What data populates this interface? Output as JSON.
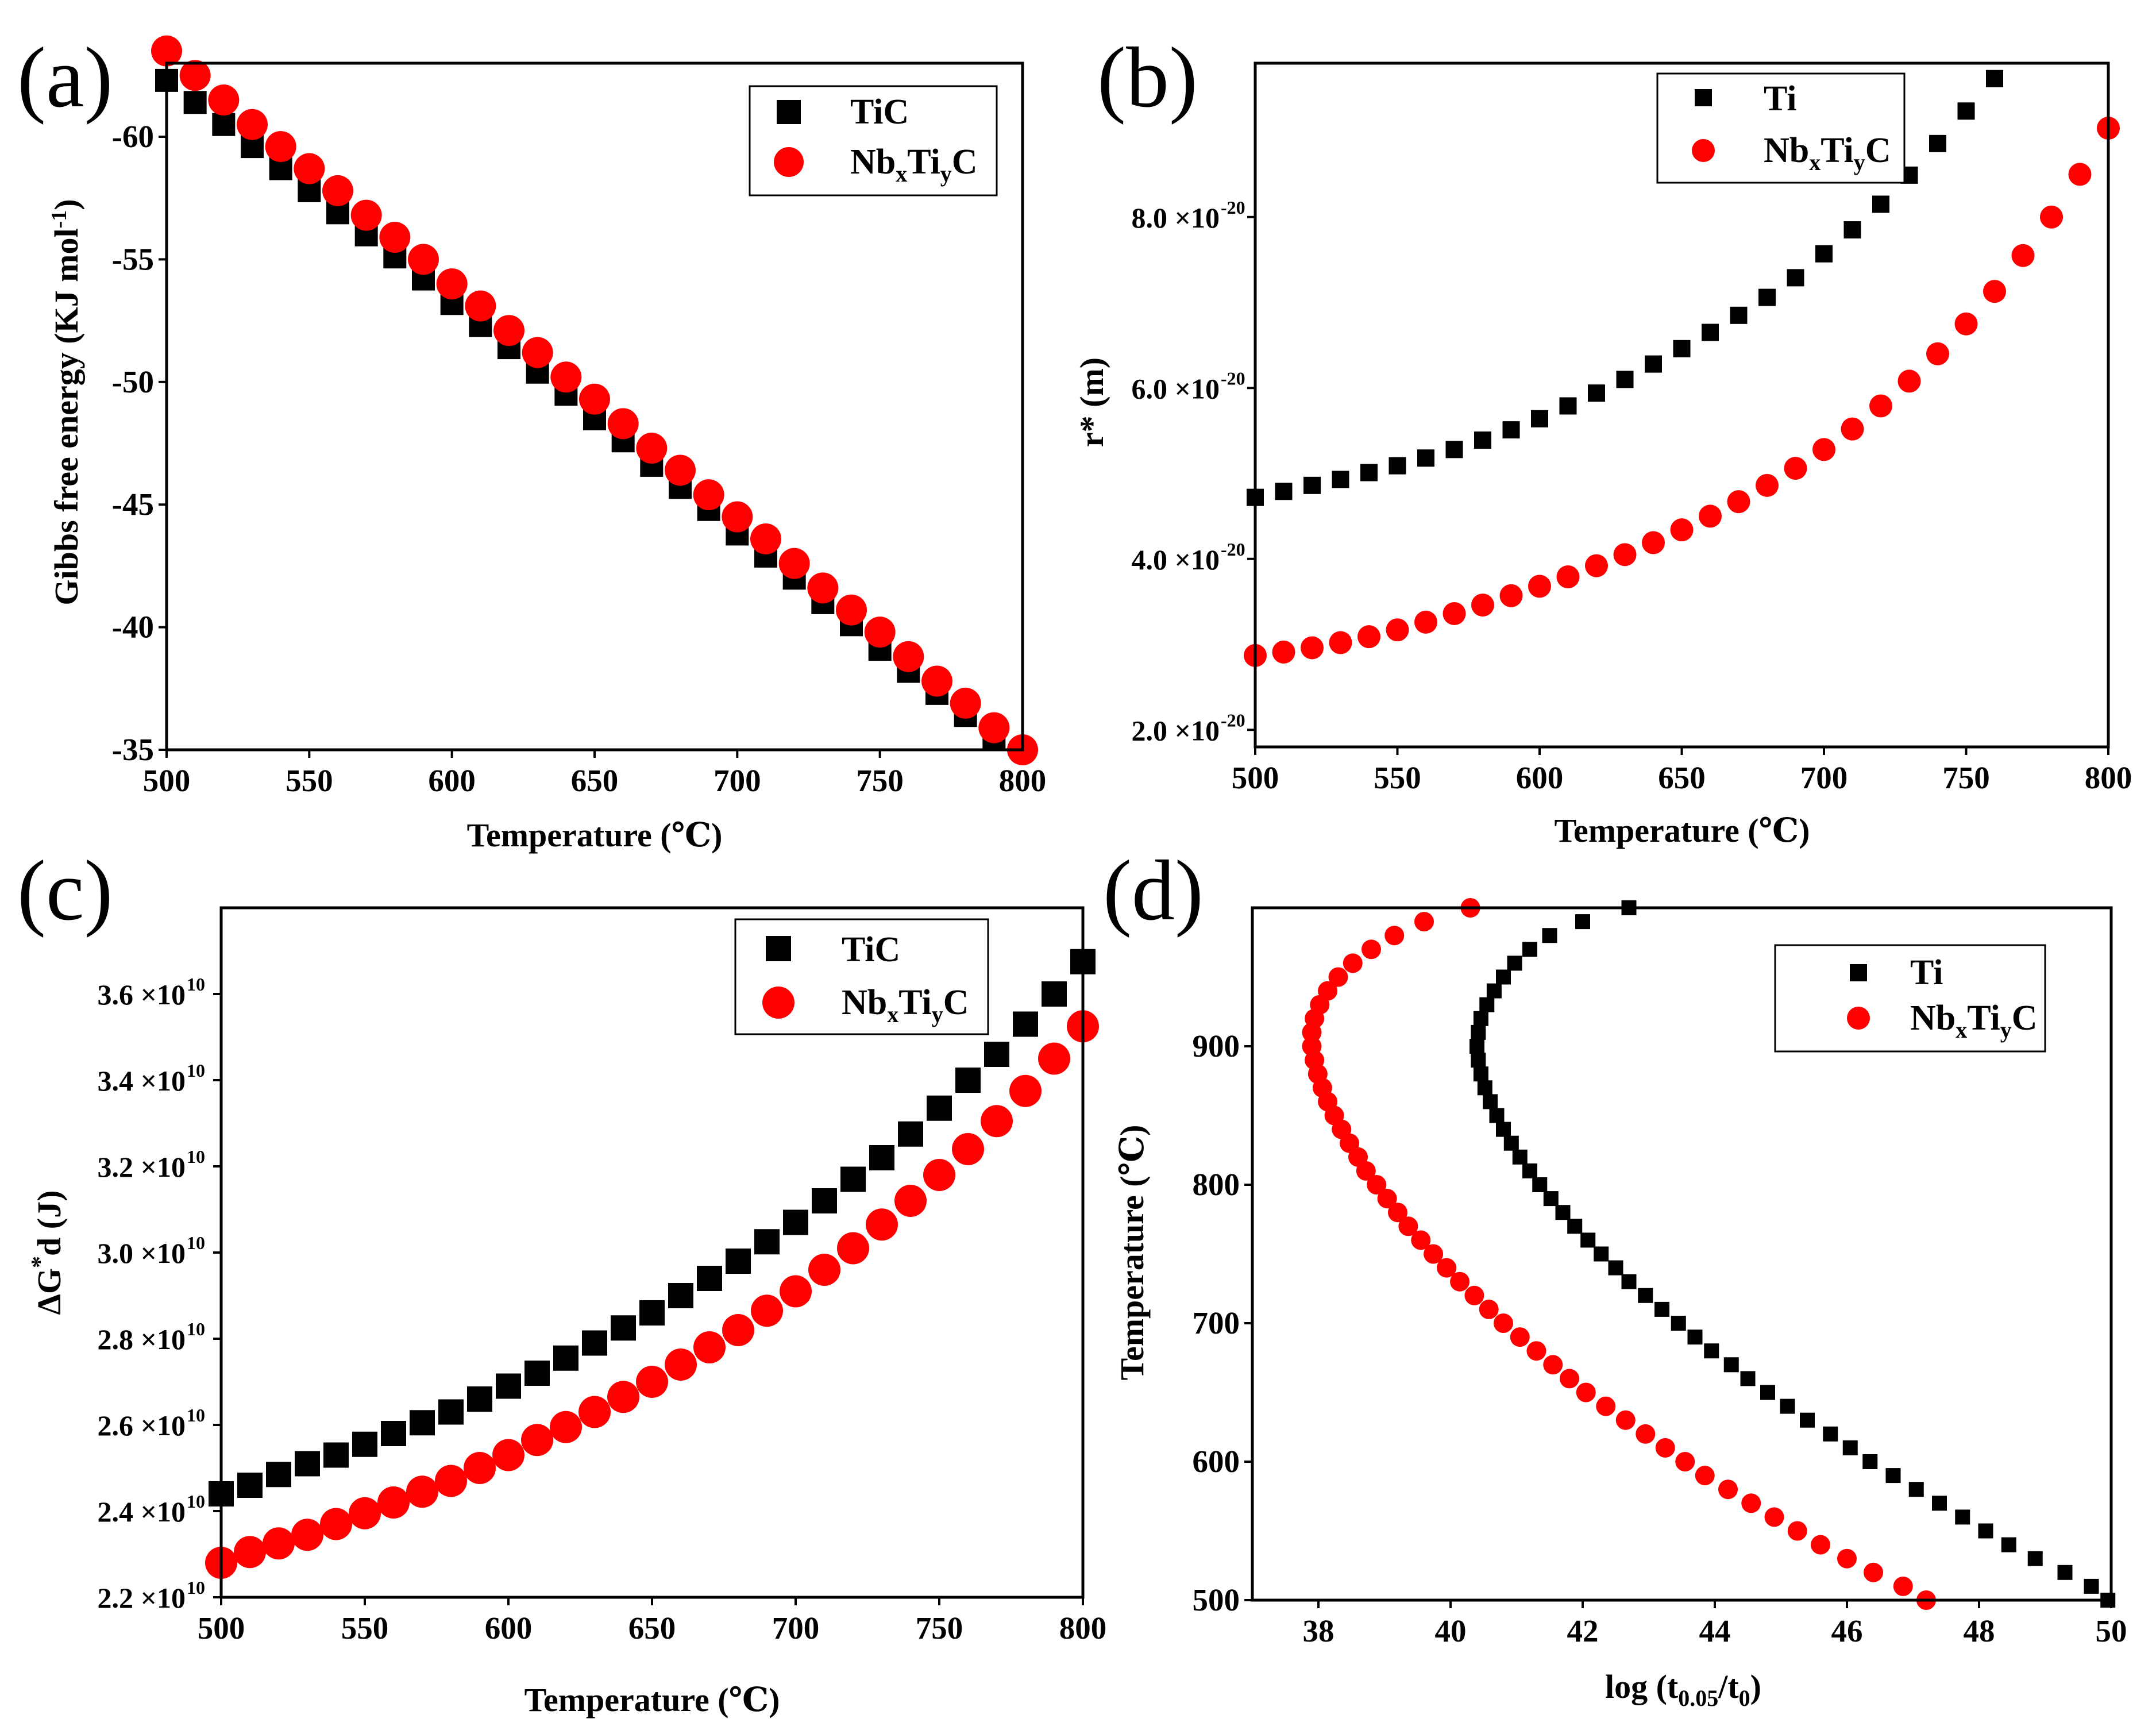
{
  "chart_data": [
    {
      "panel": "(a)",
      "type": "scatter",
      "xlabel": "Temperature (℃)",
      "ylabel": "Gibbs free energy (KJ mol⁻¹)",
      "xlim": [
        500,
        800
      ],
      "ylim": [
        -35,
        -63
      ],
      "xticks": [
        500,
        550,
        600,
        650,
        700,
        750,
        800
      ],
      "yticks": [
        -35,
        -40,
        -45,
        -50,
        -55,
        -60
      ],
      "legend_position": "top-right",
      "x": [
        500,
        510,
        520,
        530,
        540,
        550,
        560,
        570,
        580,
        590,
        600,
        610,
        620,
        630,
        640,
        650,
        660,
        670,
        680,
        690,
        700,
        710,
        720,
        730,
        740,
        750,
        760,
        770,
        780,
        790,
        800
      ],
      "series": [
        {
          "name": "TiC",
          "marker": "square",
          "color": "#000000",
          "values": [
            -62.3,
            -61.4,
            -60.5,
            -59.6,
            -58.7,
            -57.8,
            -56.9,
            -56.0,
            -55.1,
            -54.2,
            -53.2,
            -52.3,
            -51.4,
            -50.4,
            -49.5,
            -48.5,
            -47.6,
            -46.6,
            -45.7,
            -44.8,
            -43.8,
            -42.9,
            -42.0,
            -41.0,
            -40.1,
            -39.1,
            -38.2,
            -37.3,
            -36.4,
            -35.5
          ]
        },
        {
          "name": "NbxTiyC",
          "marker": "circle",
          "color": "#ff0000",
          "values": [
            -63.5,
            -62.5,
            -61.5,
            -60.5,
            -59.6,
            -58.7,
            -57.8,
            -56.8,
            -55.9,
            -55.0,
            -54.0,
            -53.1,
            -52.1,
            -51.2,
            -50.2,
            -49.3,
            -48.3,
            -47.3,
            -46.4,
            -45.4,
            -44.5,
            -43.6,
            -42.6,
            -41.6,
            -40.7,
            -39.8,
            -38.8,
            -37.8,
            -36.9,
            -35.9,
            -35.0
          ]
        }
      ]
    },
    {
      "panel": "(b)",
      "type": "scatter",
      "xlabel": "Temperature (℃)",
      "ylabel": "r* (m)",
      "xlim": [
        500,
        800
      ],
      "ylim": [
        1.8,
        9.8
      ],
      "ytick_values": [
        2.0,
        4.0,
        6.0,
        8.0
      ],
      "xticks": [
        500,
        550,
        600,
        650,
        700,
        750,
        800
      ],
      "ytick_labels": [
        "2.0 ×10",
        "4.0 ×10",
        "6.0 ×10",
        "8.0 ×10"
      ],
      "ytick_exponent": "-20",
      "legend_position": "top-right",
      "x": [
        500,
        510,
        520,
        530,
        540,
        550,
        560,
        570,
        580,
        590,
        600,
        610,
        620,
        630,
        640,
        650,
        660,
        670,
        680,
        690,
        700,
        710,
        720,
        730,
        740,
        750,
        760,
        770,
        780,
        790,
        800
      ],
      "series": [
        {
          "name": "Ti",
          "marker": "square",
          "color": "#000000",
          "values": [
            4.72,
            4.79,
            4.86,
            4.93,
            5.01,
            5.09,
            5.18,
            5.28,
            5.39,
            5.51,
            5.64,
            5.79,
            5.94,
            6.1,
            6.28,
            6.46,
            6.65,
            6.85,
            7.06,
            7.29,
            7.57,
            7.85,
            8.15,
            8.49,
            8.86,
            9.24,
            9.62
          ]
        },
        {
          "name": "NbxTiyC",
          "marker": "circle",
          "color": "#ff0000",
          "values": [
            2.87,
            2.91,
            2.96,
            3.02,
            3.09,
            3.17,
            3.26,
            3.36,
            3.46,
            3.57,
            3.68,
            3.79,
            3.92,
            4.05,
            4.19,
            4.34,
            4.5,
            4.67,
            4.86,
            5.06,
            5.28,
            5.52,
            5.79,
            6.08,
            6.4,
            6.75,
            7.13,
            7.55,
            8.0,
            8.5,
            9.04
          ]
        }
      ]
    },
    {
      "panel": "(c)",
      "type": "scatter",
      "xlabel": "Temperature (℃)",
      "ylabel": "ΔG*d (J)",
      "xlim": [
        500,
        800
      ],
      "ylim": [
        2.2,
        3.8
      ],
      "ytick_values": [
        2.2,
        2.4,
        2.6,
        2.8,
        3.0,
        3.2,
        3.4,
        3.6
      ],
      "xticks": [
        500,
        550,
        600,
        650,
        700,
        750,
        800
      ],
      "ytick_labels": [
        "2.2 ×10",
        "2.4 ×10",
        "2.6 ×10",
        "2.8 ×10",
        "3.0 ×10",
        "3.2 ×10",
        "3.4 ×10",
        "3.6 ×10"
      ],
      "ytick_exponent": "10",
      "legend_position": "top-right",
      "x": [
        500,
        510,
        520,
        530,
        540,
        550,
        560,
        570,
        580,
        590,
        600,
        610,
        620,
        630,
        640,
        650,
        660,
        670,
        680,
        690,
        700,
        710,
        720,
        730,
        740,
        750,
        760,
        770,
        780,
        790,
        800
      ],
      "series": [
        {
          "name": "TiC",
          "marker": "square",
          "color": "#000000",
          "values": [
            2.44,
            2.46,
            2.485,
            2.51,
            2.53,
            2.555,
            2.58,
            2.605,
            2.63,
            2.66,
            2.69,
            2.72,
            2.755,
            2.79,
            2.825,
            2.86,
            2.9,
            2.94,
            2.98,
            3.025,
            3.07,
            3.12,
            3.17,
            3.22,
            3.275,
            3.335,
            3.4,
            3.46,
            3.53,
            3.6,
            3.675
          ]
        },
        {
          "name": "NbxTiyC",
          "marker": "circle",
          "color": "#ff0000",
          "values": [
            2.28,
            2.305,
            2.325,
            2.345,
            2.37,
            2.395,
            2.42,
            2.445,
            2.47,
            2.5,
            2.53,
            2.565,
            2.595,
            2.63,
            2.665,
            2.7,
            2.74,
            2.78,
            2.82,
            2.865,
            2.91,
            2.96,
            3.01,
            3.065,
            3.12,
            3.18,
            3.24,
            3.305,
            3.375,
            3.45,
            3.525
          ]
        }
      ]
    },
    {
      "panel": "(d)",
      "type": "scatter",
      "xlabel": "log (t0.05/t0)",
      "ylabel": "Temperature (℃)",
      "xlim": [
        37,
        50
      ],
      "ylim": [
        500,
        1000
      ],
      "xticks": [
        38,
        40,
        42,
        44,
        46,
        48,
        50
      ],
      "yticks": [
        500,
        600,
        700,
        800,
        900
      ],
      "legend_position": "top-right",
      "series": [
        {
          "name": "Ti",
          "marker": "square",
          "color": "#000000",
          "T": [
            500,
            510,
            520,
            530,
            540,
            550,
            560,
            570,
            580,
            590,
            600,
            610,
            620,
            630,
            640,
            650,
            660,
            670,
            680,
            690,
            700,
            710,
            720,
            730,
            740,
            750,
            760,
            770,
            780,
            790,
            800,
            810,
            820,
            830,
            840,
            850,
            860,
            870,
            880,
            890,
            900,
            910,
            920,
            930,
            940,
            950,
            960,
            970,
            980,
            990,
            1000
          ],
          "logt": [
            49.95,
            49.7,
            49.3,
            48.85,
            48.45,
            48.1,
            47.75,
            47.4,
            47.05,
            46.7,
            46.35,
            46.05,
            45.75,
            45.4,
            45.1,
            44.8,
            44.5,
            44.25,
            43.95,
            43.7,
            43.45,
            43.2,
            42.95,
            42.7,
            42.5,
            42.28,
            42.08,
            41.88,
            41.7,
            41.52,
            41.35,
            41.2,
            41.05,
            40.92,
            40.8,
            40.7,
            40.6,
            40.52,
            40.46,
            40.42,
            40.4,
            40.42,
            40.46,
            40.55,
            40.66,
            40.8,
            40.97,
            41.2,
            41.5,
            42.0,
            42.7
          ]
        },
        {
          "name": "NbxTiyC",
          "marker": "circle",
          "color": "#ff0000",
          "T": [
            500,
            510,
            520,
            530,
            540,
            550,
            560,
            570,
            580,
            590,
            600,
            610,
            620,
            630,
            640,
            650,
            660,
            670,
            680,
            690,
            700,
            710,
            720,
            730,
            740,
            750,
            760,
            770,
            780,
            790,
            800,
            810,
            820,
            830,
            840,
            850,
            860,
            870,
            880,
            890,
            900,
            910,
            920,
            930,
            940,
            950,
            960,
            970,
            980,
            990,
            1000
          ],
          "logt": [
            47.2,
            46.85,
            46.4,
            46.0,
            45.6,
            45.25,
            44.9,
            44.55,
            44.2,
            43.85,
            43.55,
            43.25,
            42.95,
            42.65,
            42.35,
            42.05,
            41.8,
            41.55,
            41.3,
            41.05,
            40.8,
            40.58,
            40.36,
            40.14,
            39.94,
            39.74,
            39.55,
            39.36,
            39.2,
            39.04,
            38.88,
            38.72,
            38.6,
            38.47,
            38.35,
            38.24,
            38.14,
            38.06,
            37.99,
            37.94,
            37.9,
            37.9,
            37.94,
            38.02,
            38.14,
            38.3,
            38.52,
            38.8,
            39.15,
            39.6,
            40.3
          ]
        }
      ]
    }
  ],
  "panel_labels": {
    "a": "(a)",
    "b": "(b)",
    "c": "(c)",
    "d": "(d)"
  },
  "legend_text": {
    "tic": "TiC",
    "ti": "Ti",
    "nb_base": "Nb",
    "nb_sub_x": "x",
    "ti_mid": "Ti",
    "nb_sub_y": "y",
    "c_end": "C"
  },
  "axis_text": {
    "temperature": "Temperature (℃)",
    "gibbs_main": "Gibbs free energy (KJ mol",
    "gibbs_sup": "-1",
    "gibbs_end": ")",
    "rstar": "r* (m)",
    "dg_base": "ΔG",
    "dg_sup": "*",
    "dg_sub": "d",
    "dg_end": " (J)",
    "log_base": "log (t",
    "log_sub0": "0.05",
    "log_mid": "/t",
    "log_sub1": "0",
    "log_end": ")"
  }
}
